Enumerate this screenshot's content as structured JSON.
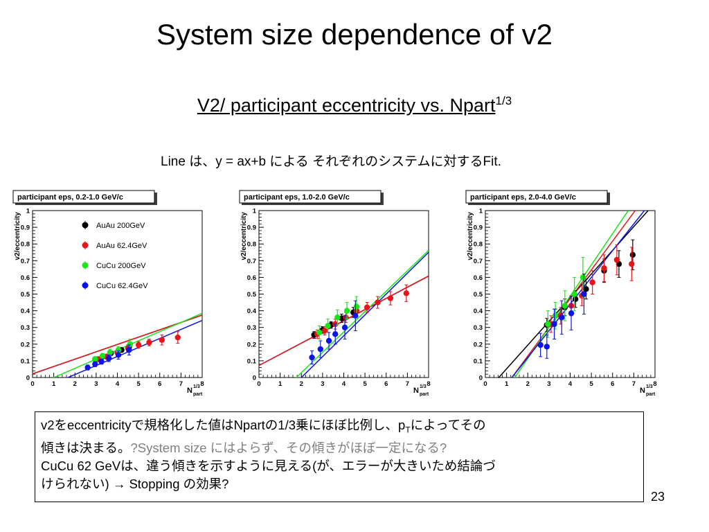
{
  "slide": {
    "title": "System size dependence of v2",
    "subtitle_main": "V2/ participant eccentricity vs. Npart",
    "subtitle_sup": "1/3",
    "fit_note": "Line は、y = ax+b による それぞれのシステムに対するFit.",
    "page_number": "23"
  },
  "notes": {
    "line1_a": "v2をeccentricityで規格化した値はNpartの1/3乗にほぼ比例し、p",
    "line1_sub": "T",
    "line1_b": "によってその",
    "line2_a": "傾きは決まる。",
    "line2_gray": "?System size にはよらず、その傾きがほぼ一定になる?",
    "line3": "CuCu 62 GeVは、違う傾きを示すように見える(が、エラーが大きいため結論づ",
    "line4_a": "けられない) ",
    "arrow": "→",
    "line4_b": " Stopping の効果?"
  },
  "colors": {
    "AuAu 200GeV": "#000000",
    "AuAu 62.4GeV": "#e8141c",
    "CuCu 200GeV": "#19e619",
    "CuCu 62.4GeV": "#0a14e6"
  },
  "chart_data": [
    {
      "type": "scatter",
      "title": "participant eps, 0.2-1.0 GeV/c",
      "ylabel": "v2/eccentricity",
      "xlabel_main": "N",
      "xlabel_sup": "1/3",
      "xlabel_sub": "part",
      "xlim": [
        0,
        8
      ],
      "ylim": [
        0,
        1
      ],
      "x_ticks": [
        "0",
        "1",
        "2",
        "3",
        "4",
        "5",
        "6",
        "7",
        "8"
      ],
      "y_ticks": [
        "0",
        "0.1",
        "0.2",
        "0.3",
        "0.4",
        "0.5",
        "0.6",
        "0.7",
        "0.8",
        "0.9",
        "1"
      ],
      "legend_placement": "top-left",
      "series": [
        {
          "name": "AuAu 200GeV",
          "points": [
            [
              2.95,
              0.11,
              0.01
            ],
            [
              3.3,
              0.125,
              0.01
            ],
            [
              3.7,
              0.145,
              0.012
            ],
            [
              4.2,
              0.165,
              0.012
            ],
            [
              4.55,
              0.18,
              0.015
            ]
          ],
          "fit": [
            0.022,
            0.044
          ]
        },
        {
          "name": "AuAu 62.4GeV",
          "points": [
            [
              3.1,
              0.11,
              0.015
            ],
            [
              3.5,
              0.125,
              0.015
            ],
            [
              4.0,
              0.15,
              0.015
            ],
            [
              4.5,
              0.175,
              0.02
            ],
            [
              5.0,
              0.195,
              0.02
            ],
            [
              5.5,
              0.21,
              0.02
            ],
            [
              6.1,
              0.225,
              0.03
            ],
            [
              6.85,
              0.24,
              0.035
            ]
          ],
          "fit": [
            0.022,
            0.044
          ]
        },
        {
          "name": "CuCu 200GeV",
          "points": [
            [
              2.95,
              0.11,
              0.015
            ],
            [
              3.3,
              0.13,
              0.015
            ],
            [
              3.65,
              0.15,
              0.02
            ],
            [
              4.05,
              0.165,
              0.02
            ],
            [
              4.6,
              0.2,
              0.03
            ]
          ],
          "fit": [
            -0.055,
            0.055
          ]
        },
        {
          "name": "CuCu 62.4GeV",
          "points": [
            [
              2.6,
              0.06,
              0.015
            ],
            [
              2.95,
              0.08,
              0.015
            ],
            [
              3.25,
              0.095,
              0.015
            ],
            [
              3.6,
              0.115,
              0.02
            ],
            [
              4.05,
              0.135,
              0.025
            ],
            [
              4.55,
              0.165,
              0.03
            ]
          ],
          "fit": [
            -0.09,
            0.054
          ]
        }
      ]
    },
    {
      "type": "scatter",
      "title": "participant eps, 1.0-2.0 GeV/c",
      "ylabel": "v2/eccentricity",
      "xlabel_main": "N",
      "xlabel_sup": "1/3",
      "xlabel_sub": "part",
      "xlim": [
        0,
        8
      ],
      "ylim": [
        0,
        1
      ],
      "x_ticks": [
        "0",
        "1",
        "2",
        "3",
        "4",
        "5",
        "6",
        "7",
        "8"
      ],
      "y_ticks": [
        "0",
        "0.1",
        "0.2",
        "0.3",
        "0.4",
        "0.5",
        "0.6",
        "0.7",
        "0.8",
        "0.9",
        "1"
      ],
      "series": [
        {
          "name": "AuAu 200GeV",
          "points": [
            [
              2.6,
              0.255,
              0.02
            ],
            [
              3.0,
              0.285,
              0.02
            ],
            [
              3.4,
              0.315,
              0.02
            ],
            [
              3.9,
              0.355,
              0.025
            ],
            [
              4.45,
              0.39,
              0.03
            ]
          ],
          "fit": [
            0.072,
            0.067
          ]
        },
        {
          "name": "AuAu 62.4GeV",
          "points": [
            [
              2.75,
              0.26,
              0.025
            ],
            [
              3.1,
              0.28,
              0.025
            ],
            [
              3.6,
              0.32,
              0.03
            ],
            [
              4.1,
              0.36,
              0.03
            ],
            [
              4.6,
              0.4,
              0.035
            ],
            [
              5.1,
              0.42,
              0.03
            ],
            [
              5.6,
              0.45,
              0.035
            ],
            [
              6.2,
              0.475,
              0.04
            ],
            [
              6.95,
              0.505,
              0.05
            ]
          ],
          "fit": [
            0.072,
            0.067
          ]
        },
        {
          "name": "CuCu 200GeV",
          "points": [
            [
              2.85,
              0.27,
              0.04
            ],
            [
              3.25,
              0.31,
              0.04
            ],
            [
              3.7,
              0.36,
              0.045
            ],
            [
              4.15,
              0.4,
              0.05
            ],
            [
              4.6,
              0.425,
              0.06
            ]
          ],
          "fit": [
            -0.215,
            0.122
          ]
        },
        {
          "name": "CuCu 62.4GeV",
          "points": [
            [
              2.5,
              0.12,
              0.04
            ],
            [
              2.9,
              0.17,
              0.05
            ],
            [
              3.3,
              0.22,
              0.05
            ],
            [
              3.6,
              0.26,
              0.06
            ],
            [
              4.05,
              0.3,
              0.07
            ],
            [
              4.55,
              0.37,
              0.09
            ]
          ],
          "fit": [
            -0.25,
            0.125
          ]
        }
      ]
    },
    {
      "type": "scatter",
      "title": "participant eps, 2.0-4.0 GeV/c",
      "ylabel": "v2/eccentricity",
      "xlabel_main": "N",
      "xlabel_sup": "1/3",
      "xlabel_sub": "part",
      "xlim": [
        0,
        8
      ],
      "ylim": [
        0,
        1
      ],
      "x_ticks": [
        "0",
        "1",
        "2",
        "3",
        "4",
        "5",
        "6",
        "7",
        "8"
      ],
      "y_ticks": [
        "0",
        "0.1",
        "0.2",
        "0.3",
        "0.4",
        "0.5",
        "0.6",
        "0.7",
        "0.8",
        "0.9",
        "1"
      ],
      "series": [
        {
          "name": "AuAu 200GeV",
          "points": [
            [
              2.9,
              0.315,
              0.04
            ],
            [
              3.3,
              0.37,
              0.04
            ],
            [
              3.75,
              0.42,
              0.05
            ],
            [
              4.25,
              0.47,
              0.05
            ],
            [
              4.75,
              0.53,
              0.06
            ],
            [
              5.6,
              0.64,
              0.07
            ],
            [
              6.3,
              0.68,
              0.08
            ],
            [
              6.95,
              0.735,
              0.09
            ]
          ],
          "fit": [
            -0.09,
            0.142
          ]
        },
        {
          "name": "AuAu 62.4GeV",
          "points": [
            [
              3.1,
              0.32,
              0.05
            ],
            [
              3.55,
              0.37,
              0.05
            ],
            [
              4.05,
              0.43,
              0.06
            ],
            [
              4.55,
              0.49,
              0.06
            ],
            [
              5.05,
              0.57,
              0.07
            ],
            [
              5.6,
              0.655,
              0.08
            ],
            [
              6.2,
              0.705,
              0.09
            ],
            [
              6.9,
              0.68,
              0.1
            ]
          ],
          "fit": [
            -0.215,
            0.172
          ]
        },
        {
          "name": "CuCu 200GeV",
          "points": [
            [
              2.95,
              0.32,
              0.08
            ],
            [
              3.3,
              0.37,
              0.08
            ],
            [
              3.75,
              0.43,
              0.09
            ],
            [
              4.2,
              0.5,
              0.1
            ],
            [
              4.6,
              0.6,
              0.12
            ]
          ],
          "fit": [
            -0.26,
            0.187
          ]
        },
        {
          "name": "CuCu 62.4GeV",
          "points": [
            [
              2.6,
              0.195,
              0.07
            ],
            [
              2.9,
              0.185,
              0.07
            ],
            [
              3.25,
              0.32,
              0.09
            ],
            [
              3.6,
              0.36,
              0.1
            ],
            [
              4.05,
              0.385,
              0.1
            ],
            [
              4.65,
              0.5,
              0.12
            ]
          ],
          "fit": [
            -0.2,
            0.16
          ]
        }
      ]
    }
  ]
}
